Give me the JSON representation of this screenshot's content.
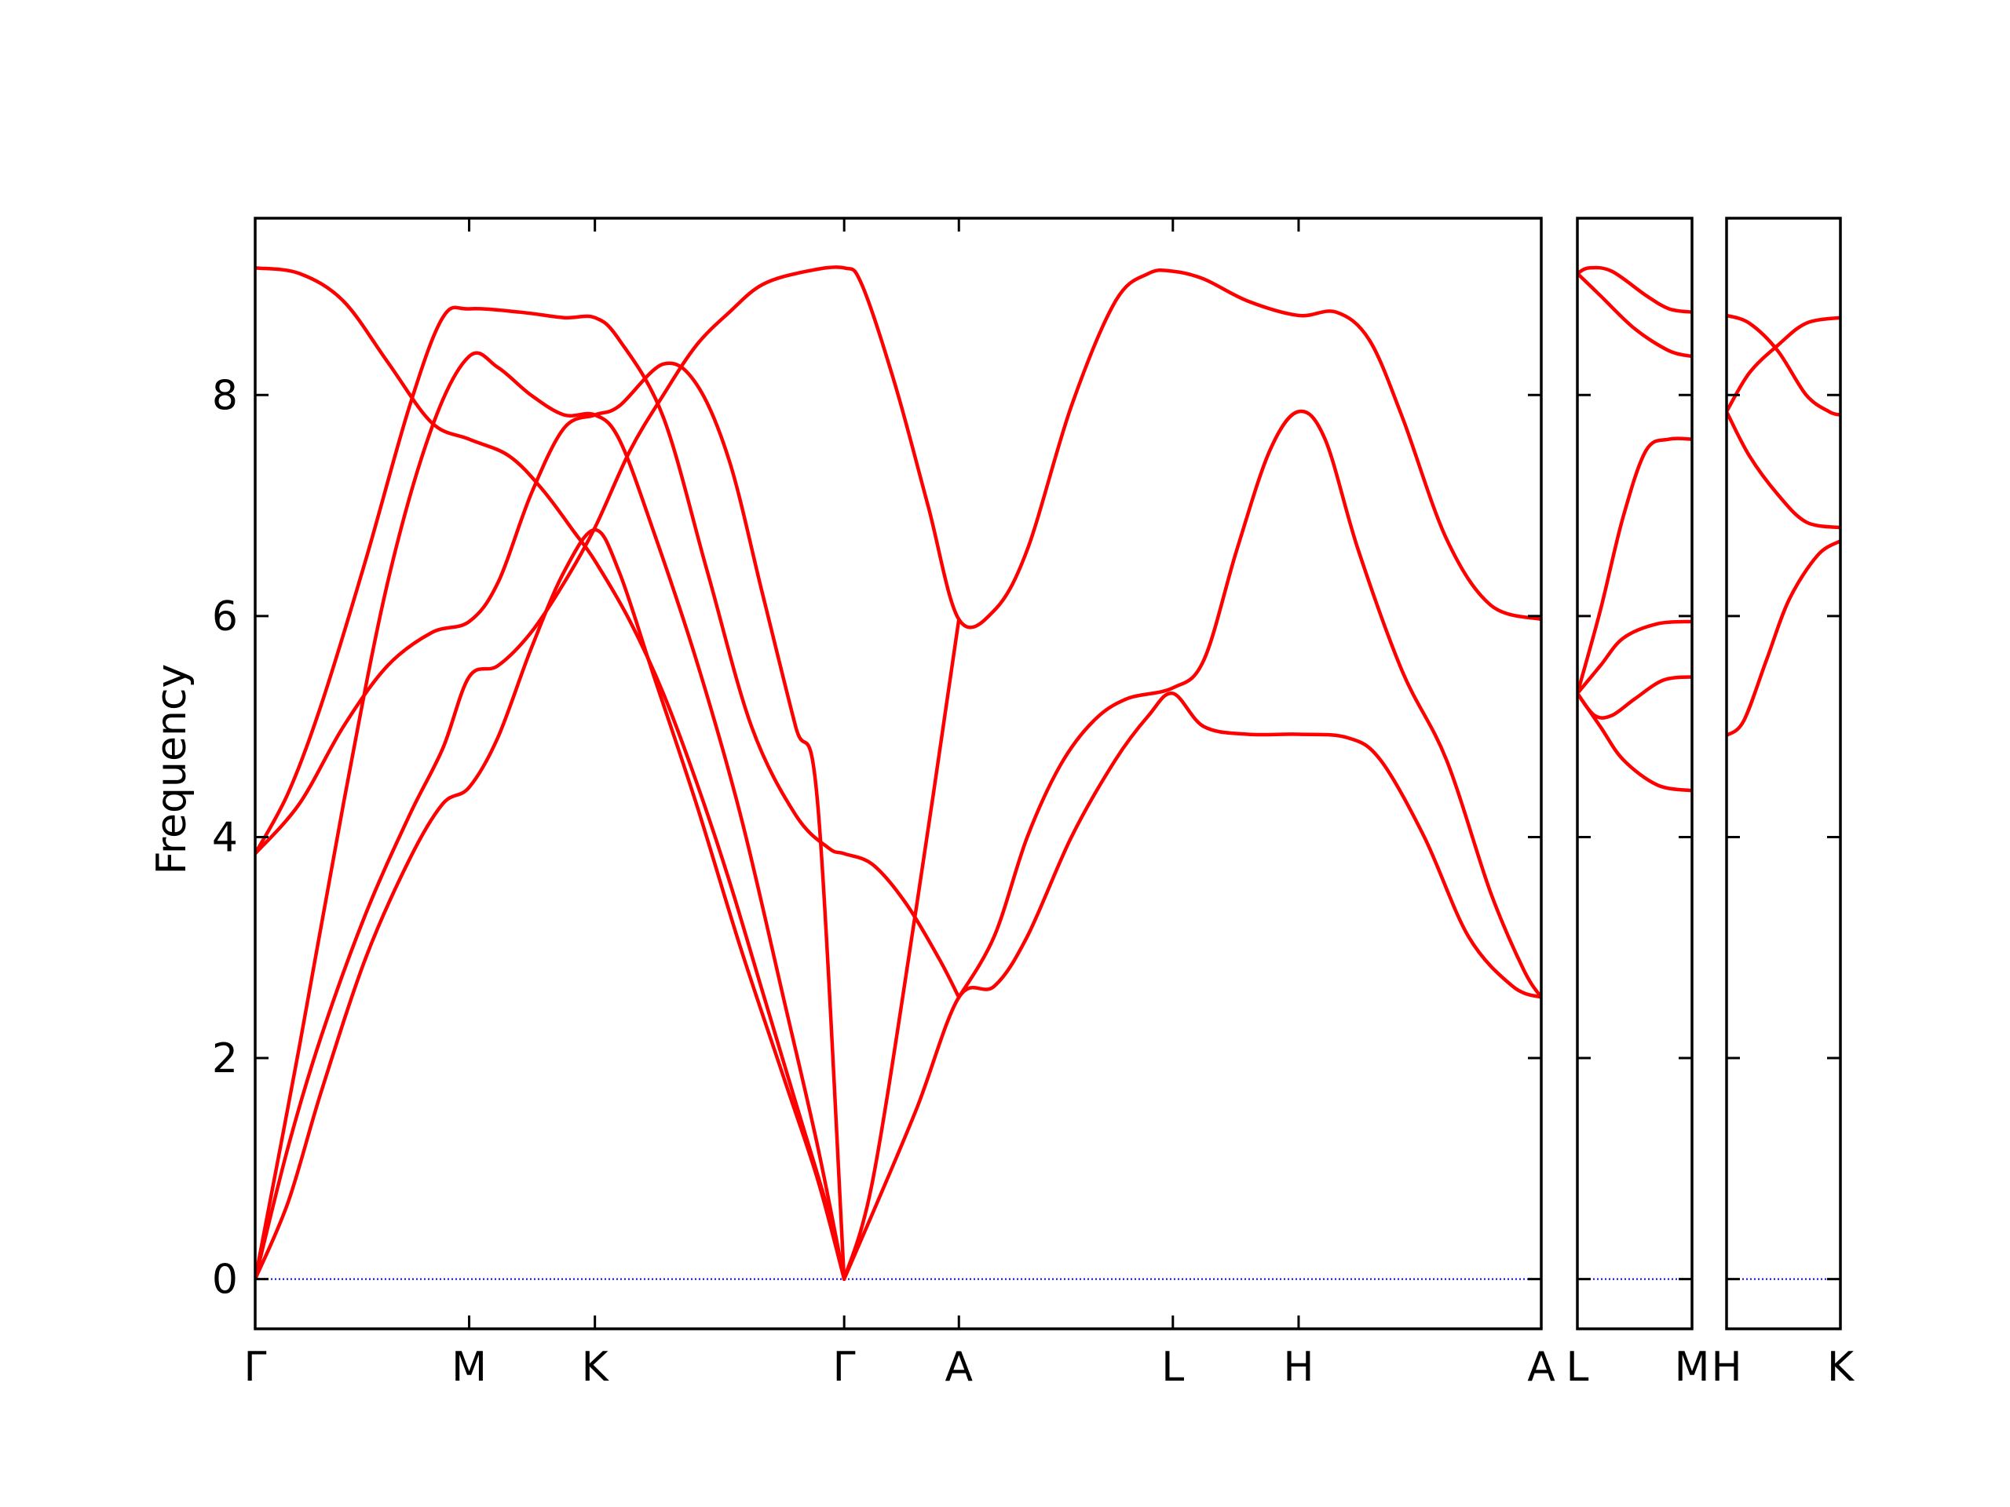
{
  "chart_data": {
    "type": "line",
    "ylabel": "Frequency",
    "xlabel": "",
    "ylim": [
      -0.45,
      9.6
    ],
    "yticks": [
      0,
      2,
      4,
      6,
      8
    ],
    "grid": false,
    "legend": "none",
    "colors": {
      "bands": "#ff0000",
      "zero_line": "#0000ff",
      "axes": "#000000"
    },
    "panels": [
      {
        "name": "main-panel",
        "xlim": [
          0,
          5.83
        ],
        "ticks": [
          {
            "x": 0.0,
            "label": "Γ"
          },
          {
            "x": 0.97,
            "label": "M"
          },
          {
            "x": 1.54,
            "label": "K"
          },
          {
            "x": 2.67,
            "label": "Γ"
          },
          {
            "x": 3.19,
            "label": "A"
          },
          {
            "x": 4.16,
            "label": "L"
          },
          {
            "x": 4.73,
            "label": "H"
          },
          {
            "x": 5.83,
            "label": "A"
          }
        ],
        "series": [
          {
            "points": [
              [
                0,
                9.15
              ],
              [
                0.2,
                9.1
              ],
              [
                0.4,
                8.85
              ],
              [
                0.6,
                8.3
              ],
              [
                0.8,
                7.75
              ],
              [
                0.97,
                7.6
              ],
              [
                1.15,
                7.45
              ],
              [
                1.3,
                7.15
              ],
              [
                1.45,
                6.75
              ],
              [
                1.54,
                6.5
              ],
              [
                1.7,
                5.95
              ],
              [
                1.85,
                5.3
              ],
              [
                2.0,
                4.5
              ],
              [
                2.15,
                3.6
              ],
              [
                2.3,
                2.6
              ],
              [
                2.45,
                1.6
              ],
              [
                2.6,
                0.6
              ],
              [
                2.67,
                0
              ]
            ]
          },
          {
            "points": [
              [
                0,
                3.85
              ],
              [
                0.15,
                4.4
              ],
              [
                0.3,
                5.2
              ],
              [
                0.5,
                6.5
              ],
              [
                0.7,
                7.9
              ],
              [
                0.85,
                8.7
              ],
              [
                0.97,
                8.78
              ],
              [
                1.2,
                8.75
              ],
              [
                1.4,
                8.7
              ],
              [
                1.54,
                8.7
              ],
              [
                1.65,
                8.5
              ],
              [
                1.85,
                7.8
              ],
              [
                2.05,
                6.4
              ],
              [
                2.25,
                5.0
              ],
              [
                2.45,
                4.2
              ],
              [
                2.6,
                3.9
              ],
              [
                2.67,
                3.85
              ],
              [
                2.8,
                3.75
              ],
              [
                2.95,
                3.4
              ],
              [
                3.1,
                2.9
              ],
              [
                3.19,
                2.55
              ]
            ]
          },
          {
            "points": [
              [
                0,
                3.85
              ],
              [
                0.2,
                4.3
              ],
              [
                0.4,
                5.0
              ],
              [
                0.6,
                5.55
              ],
              [
                0.8,
                5.85
              ],
              [
                0.97,
                5.95
              ],
              [
                1.1,
                6.3
              ],
              [
                1.25,
                7.1
              ],
              [
                1.4,
                7.7
              ],
              [
                1.54,
                7.82
              ],
              [
                1.65,
                7.9
              ],
              [
                1.85,
                8.28
              ],
              [
                2.0,
                8.1
              ],
              [
                2.15,
                7.4
              ],
              [
                2.3,
                6.2
              ],
              [
                2.45,
                5.0
              ],
              [
                2.55,
                4.3
              ],
              [
                2.67,
                0
              ]
            ]
          },
          {
            "points": [
              [
                0,
                0
              ],
              [
                0.15,
                1.2
              ],
              [
                0.3,
                2.2
              ],
              [
                0.5,
                3.3
              ],
              [
                0.7,
                4.2
              ],
              [
                0.85,
                4.8
              ],
              [
                0.97,
                5.45
              ],
              [
                1.1,
                5.55
              ],
              [
                1.25,
                5.85
              ],
              [
                1.4,
                6.3
              ],
              [
                1.54,
                6.8
              ],
              [
                1.7,
                7.5
              ],
              [
                1.85,
                8.0
              ],
              [
                2.0,
                8.45
              ],
              [
                2.15,
                8.75
              ],
              [
                2.3,
                9.0
              ],
              [
                2.5,
                9.12
              ],
              [
                2.67,
                9.15
              ],
              [
                2.75,
                9.0
              ],
              [
                2.9,
                8.1
              ],
              [
                3.05,
                7.0
              ],
              [
                3.19,
                5.97
              ],
              [
                3.35,
                6.05
              ],
              [
                3.5,
                6.6
              ],
              [
                3.7,
                7.9
              ],
              [
                3.9,
                8.85
              ],
              [
                4.05,
                9.1
              ],
              [
                4.16,
                9.12
              ],
              [
                4.3,
                9.05
              ],
              [
                4.5,
                8.85
              ],
              [
                4.73,
                8.72
              ],
              [
                4.9,
                8.75
              ],
              [
                5.05,
                8.5
              ],
              [
                5.2,
                7.8
              ],
              [
                5.4,
                6.7
              ],
              [
                5.6,
                6.1
              ],
              [
                5.83,
                5.97
              ]
            ]
          },
          {
            "points": [
              [
                0,
                0
              ],
              [
                0.15,
                0.7
              ],
              [
                0.3,
                1.7
              ],
              [
                0.5,
                2.9
              ],
              [
                0.7,
                3.8
              ],
              [
                0.85,
                4.3
              ],
              [
                0.97,
                4.45
              ],
              [
                1.1,
                4.9
              ],
              [
                1.25,
                5.7
              ],
              [
                1.4,
                6.4
              ],
              [
                1.54,
                6.78
              ],
              [
                1.65,
                6.4
              ],
              [
                1.8,
                5.5
              ],
              [
                2.0,
                4.3
              ],
              [
                2.2,
                3.0
              ],
              [
                2.4,
                1.8
              ],
              [
                2.55,
                0.9
              ],
              [
                2.67,
                0
              ]
            ]
          },
          {
            "points": [
              [
                0,
                0
              ],
              [
                0.2,
                2.1
              ],
              [
                0.4,
                4.3
              ],
              [
                0.6,
                6.3
              ],
              [
                0.8,
                7.7
              ],
              [
                0.97,
                8.35
              ],
              [
                1.1,
                8.25
              ],
              [
                1.25,
                8.0
              ],
              [
                1.4,
                7.82
              ],
              [
                1.54,
                7.82
              ],
              [
                1.65,
                7.6
              ],
              [
                1.8,
                6.8
              ],
              [
                2.0,
                5.6
              ],
              [
                2.2,
                4.2
              ],
              [
                2.4,
                2.5
              ],
              [
                2.55,
                1.2
              ],
              [
                2.67,
                0
              ]
            ]
          },
          {
            "points": [
              [
                2.67,
                0
              ],
              [
                2.8,
                0.6
              ],
              [
                3.0,
                1.55
              ],
              [
                3.19,
                2.55
              ],
              [
                3.35,
                2.65
              ],
              [
                3.5,
                3.1
              ],
              [
                3.7,
                4.0
              ],
              [
                3.9,
                4.7
              ],
              [
                4.05,
                5.1
              ],
              [
                4.16,
                5.3
              ],
              [
                4.3,
                5.0
              ],
              [
                4.5,
                4.93
              ],
              [
                4.73,
                4.93
              ],
              [
                4.95,
                4.9
              ],
              [
                5.1,
                4.7
              ],
              [
                5.3,
                4.0
              ],
              [
                5.5,
                3.1
              ],
              [
                5.7,
                2.65
              ],
              [
                5.83,
                2.55
              ]
            ]
          },
          {
            "points": [
              [
                2.67,
                0
              ],
              [
                2.8,
                0.9
              ],
              [
                3.0,
                3.4
              ],
              [
                3.19,
                5.97
              ]
            ]
          },
          {
            "points": [
              [
                3.19,
                2.55
              ],
              [
                3.35,
                3.1
              ],
              [
                3.5,
                4.0
              ],
              [
                3.65,
                4.65
              ],
              [
                3.8,
                5.05
              ],
              [
                3.95,
                5.25
              ],
              [
                4.16,
                5.35
              ],
              [
                4.3,
                5.6
              ],
              [
                4.45,
                6.6
              ],
              [
                4.6,
                7.5
              ],
              [
                4.73,
                7.85
              ],
              [
                4.85,
                7.6
              ],
              [
                5.0,
                6.6
              ],
              [
                5.2,
                5.5
              ],
              [
                5.4,
                4.7
              ],
              [
                5.6,
                3.5
              ],
              [
                5.75,
                2.8
              ],
              [
                5.83,
                2.55
              ]
            ]
          }
        ]
      },
      {
        "name": "lm-panel",
        "xlim": [
          0,
          1
        ],
        "ticks": [
          {
            "x": 0,
            "label": "L"
          },
          {
            "x": 1,
            "label": "M"
          }
        ],
        "series": [
          {
            "points": [
              [
                0,
                9.1
              ],
              [
                0.1,
                9.15
              ],
              [
                0.3,
                9.12
              ],
              [
                0.6,
                8.9
              ],
              [
                0.8,
                8.78
              ],
              [
                1,
                8.75
              ]
            ]
          },
          {
            "points": [
              [
                0,
                9.1
              ],
              [
                0.2,
                8.9
              ],
              [
                0.5,
                8.6
              ],
              [
                0.8,
                8.4
              ],
              [
                1,
                8.35
              ]
            ]
          },
          {
            "points": [
              [
                0,
                5.3
              ],
              [
                0.2,
                6.05
              ],
              [
                0.4,
                6.9
              ],
              [
                0.6,
                7.5
              ],
              [
                0.8,
                7.6
              ],
              [
                1,
                7.6
              ]
            ]
          },
          {
            "points": [
              [
                0,
                5.3
              ],
              [
                0.2,
                5.55
              ],
              [
                0.4,
                5.8
              ],
              [
                0.7,
                5.93
              ],
              [
                1,
                5.95
              ]
            ]
          },
          {
            "points": [
              [
                0,
                5.3
              ],
              [
                0.15,
                5.1
              ],
              [
                0.3,
                5.1
              ],
              [
                0.5,
                5.25
              ],
              [
                0.75,
                5.42
              ],
              [
                1,
                5.45
              ]
            ]
          },
          {
            "points": [
              [
                0,
                5.3
              ],
              [
                0.2,
                5.0
              ],
              [
                0.4,
                4.7
              ],
              [
                0.7,
                4.47
              ],
              [
                1,
                4.42
              ]
            ]
          }
        ]
      },
      {
        "name": "hk-panel",
        "xlim": [
          0,
          1
        ],
        "ticks": [
          {
            "x": 0,
            "label": "H"
          },
          {
            "x": 1,
            "label": "K"
          }
        ],
        "series": [
          {
            "points": [
              [
                0,
                8.72
              ],
              [
                0.2,
                8.65
              ],
              [
                0.45,
                8.4
              ],
              [
                0.7,
                8.0
              ],
              [
                0.9,
                7.85
              ],
              [
                1,
                7.82
              ]
            ]
          },
          {
            "points": [
              [
                0,
                7.85
              ],
              [
                0.2,
                8.2
              ],
              [
                0.45,
                8.45
              ],
              [
                0.7,
                8.65
              ],
              [
                1,
                8.7
              ]
            ]
          },
          {
            "points": [
              [
                0,
                7.85
              ],
              [
                0.2,
                7.45
              ],
              [
                0.45,
                7.1
              ],
              [
                0.7,
                6.85
              ],
              [
                1,
                6.8
              ]
            ]
          },
          {
            "points": [
              [
                0,
                4.92
              ],
              [
                0.15,
                5.05
              ],
              [
                0.35,
                5.6
              ],
              [
                0.55,
                6.15
              ],
              [
                0.8,
                6.55
              ],
              [
                1,
                6.68
              ]
            ]
          }
        ]
      }
    ]
  }
}
